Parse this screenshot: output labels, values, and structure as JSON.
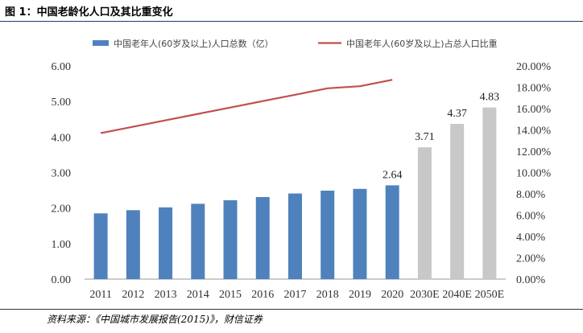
{
  "figure": {
    "title": "图 1：中国老龄化人口及其比重变化",
    "source": "资料来源：《中国城市发展报告(2015)》，财信证券"
  },
  "colors": {
    "bar_actual": "#4f81bd",
    "bar_forecast": "#c8c8c8",
    "line": "#c0504d",
    "axis": "#999999",
    "text": "#333333"
  },
  "chart_data": {
    "type": "bar",
    "title": "",
    "categories": [
      "2011",
      "2012",
      "2013",
      "2014",
      "2015",
      "2016",
      "2017",
      "2018",
      "2019",
      "2020",
      "2030E",
      "2040E",
      "2050E"
    ],
    "series": [
      {
        "name": "中国老年人(60岁及以上)人口总数（亿）",
        "type": "bar",
        "axis": "left",
        "values": [
          1.85,
          1.94,
          2.02,
          2.12,
          2.22,
          2.31,
          2.41,
          2.49,
          2.54,
          2.64,
          3.71,
          4.37,
          4.83
        ],
        "forecast_categories": [
          "2030E",
          "2040E",
          "2050E"
        ]
      },
      {
        "name": "中国老年人(60岁及以上)占总人口比重",
        "type": "line",
        "axis": "right",
        "values": [
          13.7,
          14.3,
          14.9,
          15.5,
          16.1,
          16.7,
          17.3,
          17.9,
          18.1,
          18.7,
          null,
          null,
          null
        ]
      }
    ],
    "data_labels": [
      {
        "category": "2020",
        "text": "2.64"
      },
      {
        "category": "2030E",
        "text": "3.71"
      },
      {
        "category": "2040E",
        "text": "4.37"
      },
      {
        "category": "2050E",
        "text": "4.83"
      }
    ],
    "y_left": {
      "min": 0,
      "max": 6,
      "ticks": [
        "0.00",
        "1.00",
        "2.00",
        "3.00",
        "4.00",
        "5.00",
        "6.00"
      ]
    },
    "y_right": {
      "min": 0,
      "max": 20,
      "ticks": [
        "0.00%",
        "2.00%",
        "4.00%",
        "6.00%",
        "8.00%",
        "10.00%",
        "12.00%",
        "14.00%",
        "16.00%",
        "18.00%",
        "20.00%"
      ]
    },
    "xlabel": "",
    "ylabel": "",
    "legend_position": "top",
    "grid": false
  }
}
